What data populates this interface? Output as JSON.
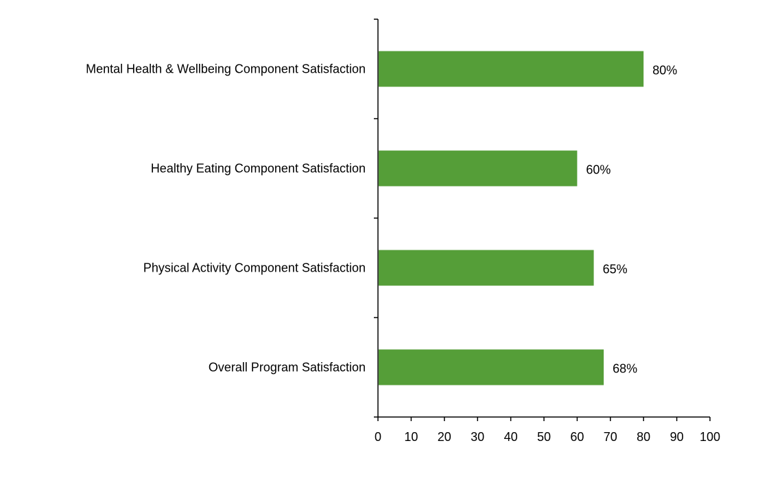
{
  "chart_data": {
    "type": "bar",
    "orientation": "horizontal",
    "title": "",
    "xlabel": "",
    "ylabel": "",
    "categories": [
      "Mental Health & Wellbeing Component Satisfaction",
      "Healthy Eating Component Satisfaction",
      "Physical Activity Component Satisfaction",
      "Overall Program Satisfaction"
    ],
    "values": [
      80,
      60,
      65,
      68
    ],
    "value_labels": [
      "80%",
      "60%",
      "65%",
      "68%"
    ],
    "xlim": [
      0,
      100
    ],
    "x_ticks": [
      0,
      10,
      20,
      30,
      40,
      50,
      60,
      70,
      80,
      90,
      100
    ],
    "grid": false,
    "legend": "none",
    "colors": {
      "bar": "#559e38",
      "axis": "#000000",
      "text": "#000000"
    }
  }
}
